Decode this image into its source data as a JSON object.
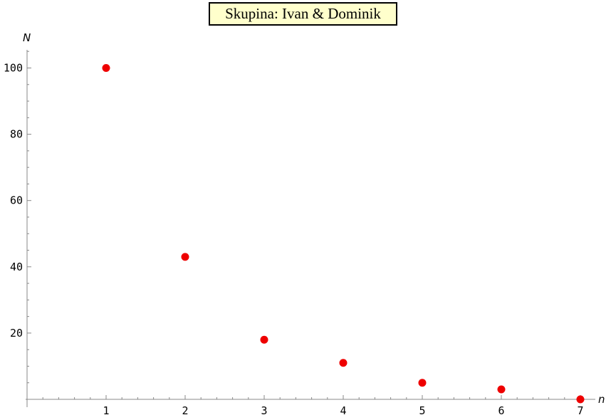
{
  "chart_data": {
    "type": "scatter",
    "title": "Skupina: Ivan & Dominik",
    "xlabel": "n",
    "ylabel": "N",
    "x": [
      1,
      2,
      3,
      4,
      5,
      6,
      7
    ],
    "y": [
      100,
      43,
      18,
      11,
      5,
      3,
      0
    ],
    "xlim": [
      0,
      7
    ],
    "ylim": [
      0,
      100
    ],
    "x_ticks": [
      "1",
      "2",
      "3",
      "4",
      "5",
      "6",
      "7"
    ],
    "y_ticks": [
      "20",
      "40",
      "60",
      "80",
      "100"
    ],
    "grid": false,
    "marker_color": "#ee0000"
  }
}
